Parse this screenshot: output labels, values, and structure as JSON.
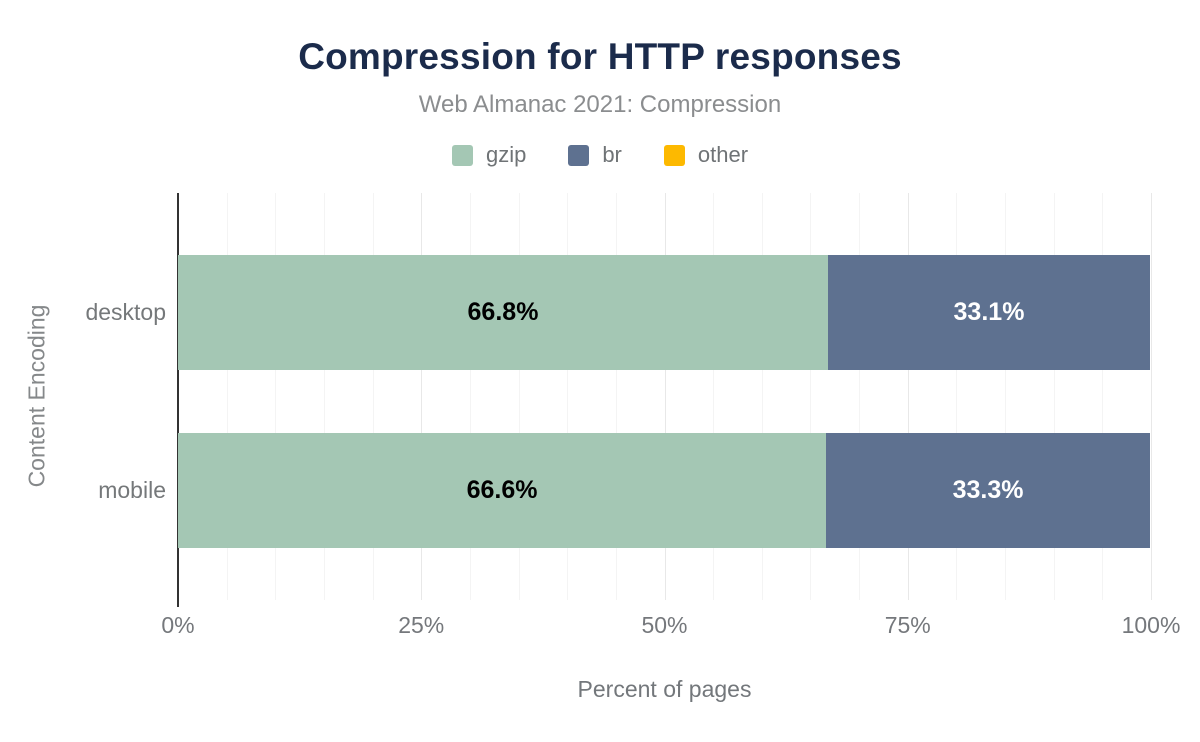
{
  "chart_data": {
    "type": "bar",
    "orientation": "horizontal",
    "stacked": true,
    "title": "Compression for HTTP responses",
    "subtitle": "Web Almanac 2021: Compression",
    "xlabel": "Percent of pages",
    "ylabel": "Content Encoding",
    "categories": [
      "desktop",
      "mobile"
    ],
    "series": [
      {
        "name": "gzip",
        "color": "#a4c7b4",
        "label_color": "#000000",
        "values": [
          66.8,
          66.6
        ],
        "value_labels": [
          "66.8%",
          "66.6%"
        ]
      },
      {
        "name": "br",
        "color": "#5e7190",
        "label_color": "#ffffff",
        "values": [
          33.1,
          33.3
        ],
        "value_labels": [
          "33.1%",
          "33.3%"
        ]
      },
      {
        "name": "other",
        "color": "#fdb900",
        "label_color": "#000000",
        "values": [
          0,
          0
        ],
        "value_labels": [
          "",
          ""
        ]
      }
    ],
    "xlim": [
      0,
      100
    ],
    "xticks": [
      {
        "value": 0,
        "label": "0%"
      },
      {
        "value": 25,
        "label": "25%"
      },
      {
        "value": 50,
        "label": "50%"
      },
      {
        "value": 75,
        "label": "75%"
      },
      {
        "value": 100,
        "label": "100%"
      }
    ],
    "grid": {
      "axis": "x",
      "minor_step": 5,
      "major_step": 25
    },
    "legend_position": "top"
  }
}
